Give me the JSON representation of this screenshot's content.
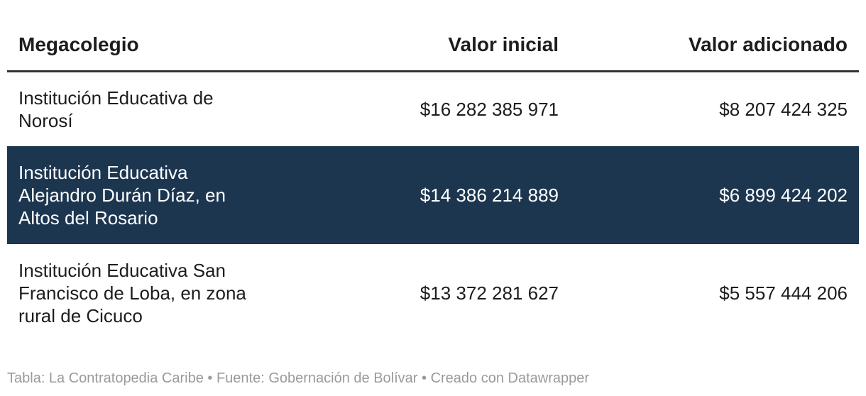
{
  "table": {
    "header": [
      "Megacolegio",
      "Valor inicial",
      "Valor adicionado"
    ],
    "rows": [
      [
        "Institución Educativa de Norosí",
        "$16 282 385 971",
        "$8 207 424 325"
      ],
      [
        "Institución Educativa Alejandro Durán Díaz, en Altos del Rosario",
        "$14 386 214 889",
        "$6 899 424 202"
      ],
      [
        "Institución Educativa San Francisco de Loba, en zona rural de Cicuco",
        "$13 372 281 627",
        "$5 557 444 206"
      ]
    ],
    "highlighted_row": 1
  },
  "footer": "Tabla: La Contratopedia Caribe • Fuente: Gobernación de Bolívar • Creado con Datawrapper"
}
